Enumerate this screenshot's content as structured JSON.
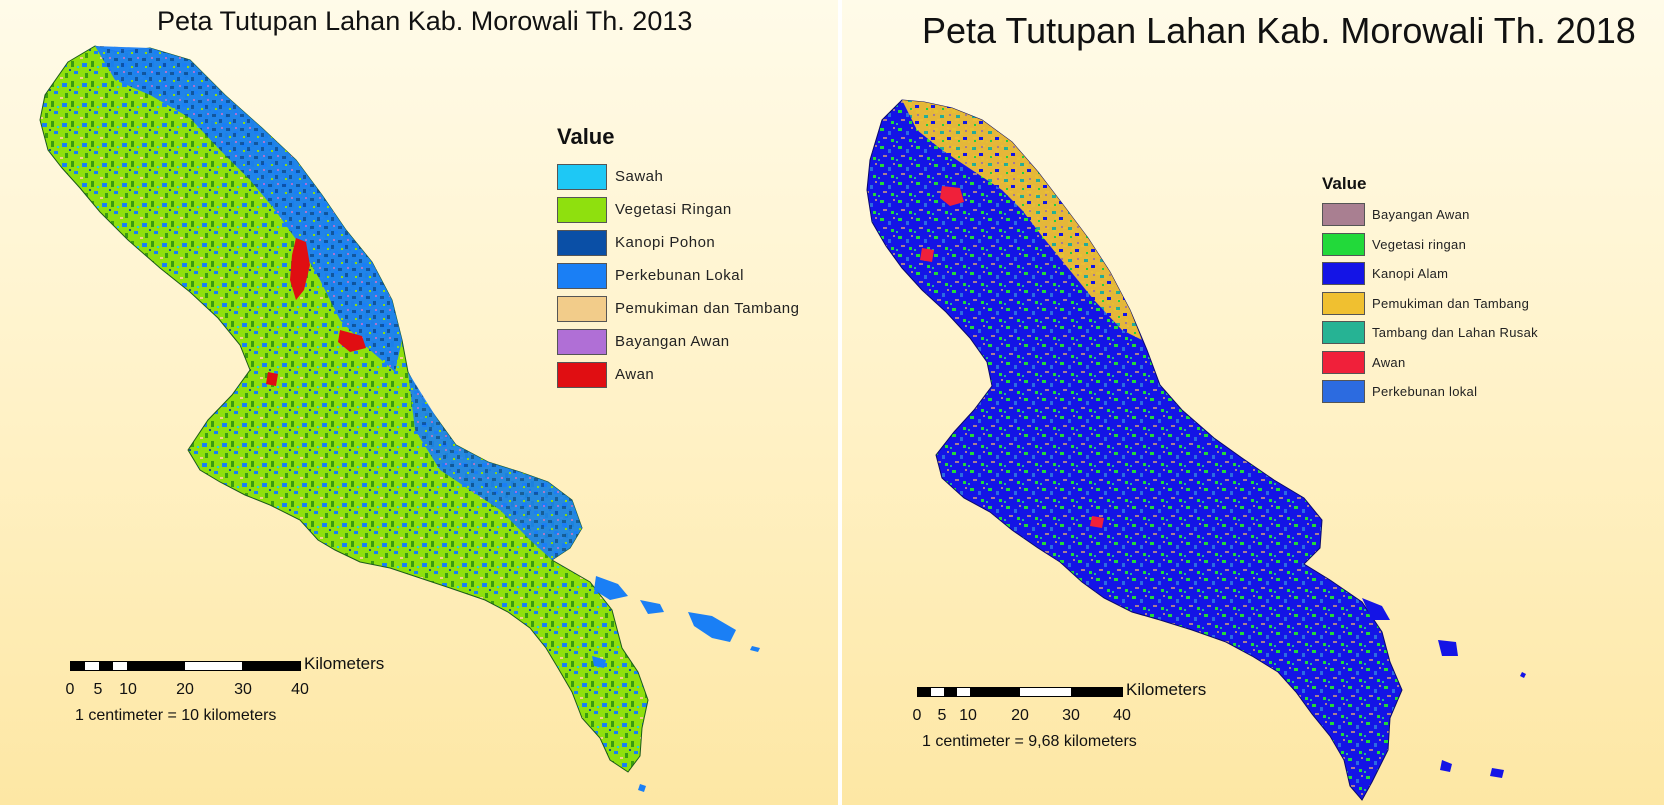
{
  "maps": {
    "left": {
      "title": "Peta Tutupan Lahan Kab. Morowali Th. 2013",
      "legend": {
        "title": "Value",
        "items": [
          {
            "label": "Sawah",
            "color": "#1ec8f5"
          },
          {
            "label": "Vegetasi Ringan",
            "color": "#8fe00e"
          },
          {
            "label": "Kanopi Pohon",
            "color": "#0a4fa6"
          },
          {
            "label": "Perkebunan Lokal",
            "color": "#1a7ff5"
          },
          {
            "label": "Pemukiman dan Tambang",
            "color": "#f2cc8a"
          },
          {
            "label": "Bayangan Awan",
            "color": "#b06fd6"
          },
          {
            "label": "Awan",
            "color": "#e00e12"
          }
        ]
      },
      "scale": {
        "unit": "Kilometers",
        "ticks": [
          "0",
          "5",
          "10",
          "20",
          "30",
          "40"
        ],
        "ratio": "1 centimeter = 10 kilometers"
      }
    },
    "right": {
      "title": "Peta Tutupan Lahan Kab. Morowali Th. 2018",
      "legend": {
        "title": "Value",
        "items": [
          {
            "label": "Bayangan Awan",
            "color": "#a97f91"
          },
          {
            "label": "Vegetasi ringan",
            "color": "#22d93a"
          },
          {
            "label": "Kanopi Alam",
            "color": "#1414e6"
          },
          {
            "label": "Pemukiman dan Tambang",
            "color": "#f0c030"
          },
          {
            "label": "Tambang dan Lahan Rusak",
            "color": "#26b394"
          },
          {
            "label": "Awan",
            "color": "#f0203a"
          },
          {
            "label": "Perkebunan lokal",
            "color": "#2c6be0"
          }
        ]
      },
      "scale": {
        "unit": "Kilometers",
        "ticks": [
          "0",
          "5",
          "10",
          "20",
          "30",
          "40"
        ],
        "ratio": "1 centimeter = 9,68 kilometers"
      }
    }
  }
}
